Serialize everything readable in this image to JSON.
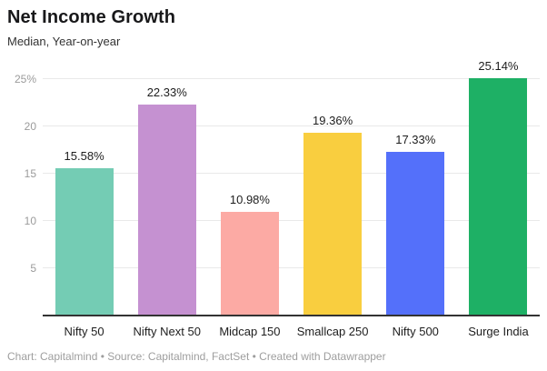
{
  "header": {
    "title": "Net Income Growth",
    "subtitle": "Median, Year-on-year"
  },
  "chart_data": {
    "type": "bar",
    "title": "Net Income Growth",
    "subtitle": "Median, Year-on-year",
    "categories": [
      "Nifty 50",
      "Nifty Next 50",
      "Midcap 150",
      "Smallcap 250",
      "Nifty 500",
      "Surge India"
    ],
    "values": [
      15.58,
      22.33,
      10.98,
      19.36,
      17.33,
      25.14
    ],
    "value_labels": [
      "15.58%",
      "22.33%",
      "10.98%",
      "19.36%",
      "17.33%",
      "25.14%"
    ],
    "bar_colors": [
      "#74CCB4",
      "#C591D1",
      "#FCAAA4",
      "#F9CE3F",
      "#5470FA",
      "#1EB065"
    ],
    "xlabel": "",
    "ylabel": "",
    "ylim": [
      0,
      27
    ],
    "yticks": [
      {
        "value": 5,
        "label": "5"
      },
      {
        "value": 10,
        "label": "10"
      },
      {
        "value": 15,
        "label": "15"
      },
      {
        "value": 20,
        "label": "20"
      },
      {
        "value": 25,
        "label": "25%"
      }
    ],
    "grid": "horizontal",
    "legend_position": "none"
  },
  "footer": {
    "text": "Chart: Capitalmind • Source: Capitalmind, FactSet • Created with Datawrapper"
  }
}
